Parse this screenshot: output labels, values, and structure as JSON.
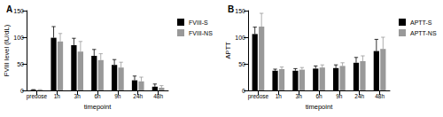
{
  "chart_data": [
    {
      "type": "bar",
      "title": "A",
      "xlabel": "timepoint",
      "ylabel": "FVIII level (IU/dL)",
      "categories": [
        "predose",
        "1h",
        "3h",
        "6h",
        "9h",
        "24h",
        "48h"
      ],
      "series": [
        {
          "name": "FVIII-S",
          "color": "#000000",
          "values": [
            1,
            99,
            85,
            65,
            48,
            19,
            7
          ],
          "errors": [
            0.5,
            21,
            13,
            12,
            10,
            8,
            5
          ]
        },
        {
          "name": "FVIII-NS",
          "color": "#999999",
          "values": [
            1,
            92,
            73,
            57,
            43,
            17,
            5
          ],
          "errors": [
            0.5,
            15,
            19,
            12,
            10,
            8,
            4
          ]
        }
      ],
      "ylim": [
        0,
        150
      ],
      "yticks": [
        0,
        50,
        100,
        150
      ],
      "grid": false,
      "legend": "upper right"
    },
    {
      "type": "bar",
      "title": "B",
      "xlabel": "timepoint",
      "ylabel": "APTT",
      "categories": [
        "predose",
        "1h",
        "3h",
        "6h",
        "9h",
        "24h",
        "48h"
      ],
      "series": [
        {
          "name": "APTT-S",
          "color": "#000000",
          "values": [
            106,
            37,
            37,
            41,
            42,
            52,
            74
          ],
          "errors": [
            13,
            3,
            4,
            5,
            6,
            10,
            22
          ]
        },
        {
          "name": "APTT-NS",
          "color": "#999999",
          "values": [
            120,
            40,
            39,
            43,
            46,
            55,
            78
          ],
          "errors": [
            25,
            4,
            4,
            5,
            6,
            10,
            22
          ]
        }
      ],
      "ylim": [
        0,
        150
      ],
      "yticks": [
        0,
        50,
        100,
        150
      ],
      "grid": false,
      "legend": "upper right"
    }
  ]
}
